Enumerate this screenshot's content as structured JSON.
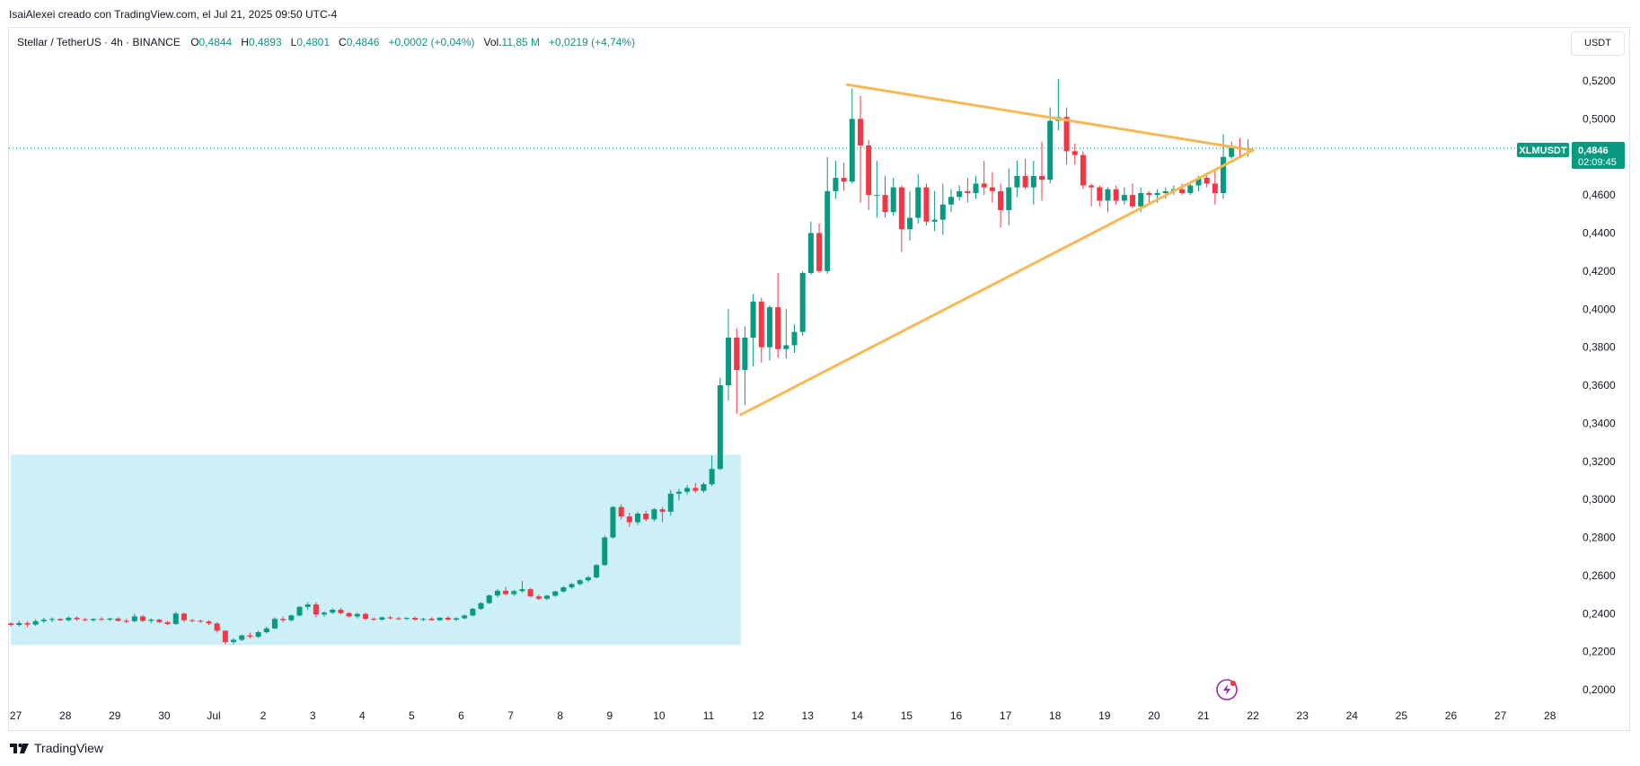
{
  "header": {
    "credit": "IsaiAlexei creado con TradingView.com, el Jul 21, 2025 09:50 UTC-4"
  },
  "legend": {
    "symbol": "Stellar / TetherUS · 4h · BINANCE",
    "o_label": "O",
    "o_value": "0,4844",
    "h_label": "H",
    "h_value": "0,4893",
    "l_label": "L",
    "l_value": "0,4801",
    "c_label": "C",
    "c_value": "0,4846",
    "change": "+0,0002 (+0,04%)",
    "vol_label": "Vol.",
    "vol_value": "11,85 M",
    "vol_change": "+0,0219 (+4,74%)"
  },
  "currency_button": "USDT",
  "price_tag": {
    "symbol": "XLMUSDT",
    "price": "0,4846",
    "countdown": "02:09:45"
  },
  "footer": {
    "brand": "TradingView"
  },
  "colors": {
    "up": "#089981",
    "down": "#f23645",
    "triangle": "#f7b955",
    "zone": "#cdf0f6",
    "grid_dotted": "#089981"
  },
  "chart_data": {
    "type": "candlestick",
    "symbol": "XLMUSDT",
    "timeframe": "4h",
    "exchange": "BINANCE",
    "y_ticks": [
      "0,5200",
      "0,5000",
      "0,4800",
      "0,4600",
      "0,4400",
      "0,4200",
      "0,4000",
      "0,3800",
      "0,3600",
      "0,3400",
      "0,3200",
      "0,3000",
      "0,2800",
      "0,2600",
      "0,2400",
      "0,2200",
      "0,2000"
    ],
    "y_tick_values": [
      0.52,
      0.5,
      0.48,
      0.46,
      0.44,
      0.42,
      0.4,
      0.38,
      0.36,
      0.34,
      0.32,
      0.3,
      0.28,
      0.26,
      0.24,
      0.22,
      0.2
    ],
    "ylim": [
      0.1935,
      0.5365
    ],
    "x_ticks": [
      "27",
      "28",
      "29",
      "30",
      "Jul",
      "2",
      "3",
      "4",
      "5",
      "6",
      "7",
      "8",
      "9",
      "10",
      "11",
      "12",
      "13",
      "14",
      "15",
      "16",
      "17",
      "18",
      "19",
      "20",
      "21",
      "22",
      "23",
      "24",
      "25",
      "26",
      "27",
      "28"
    ],
    "x_tick_days": [
      -4,
      -3,
      -2,
      -1,
      0,
      1,
      2,
      3,
      4,
      5,
      6,
      7,
      8,
      9,
      10,
      11,
      12,
      13,
      14,
      15,
      16,
      17,
      18,
      19,
      20,
      21,
      22,
      23,
      24,
      25,
      26,
      27
    ],
    "last_price": 0.4846,
    "consolidation_zone": {
      "x_from": -4.1,
      "x_to": 10.65,
      "y_from": 0.2235,
      "y_to": 0.3235
    },
    "triangle": {
      "upper": [
        [
          12.8,
          0.518
        ],
        [
          21.0,
          0.4835
        ]
      ],
      "lower": [
        [
          10.65,
          0.3445
        ],
        [
          21.0,
          0.4835
        ]
      ]
    },
    "candles": [
      [
        0.2348,
        0.2355,
        0.233,
        0.234
      ],
      [
        0.234,
        0.2362,
        0.2332,
        0.235
      ],
      [
        0.235,
        0.236,
        0.2328,
        0.2342
      ],
      [
        0.2342,
        0.237,
        0.2335,
        0.236
      ],
      [
        0.236,
        0.2378,
        0.235,
        0.2368
      ],
      [
        0.2368,
        0.238,
        0.2355,
        0.2372
      ],
      [
        0.2372,
        0.2376,
        0.236,
        0.2365
      ],
      [
        0.2365,
        0.2385,
        0.2358,
        0.2378
      ],
      [
        0.2378,
        0.2385,
        0.2362,
        0.237
      ],
      [
        0.237,
        0.2378,
        0.236,
        0.2365
      ],
      [
        0.2365,
        0.2375,
        0.2358,
        0.2372
      ],
      [
        0.2372,
        0.238,
        0.2362,
        0.2368
      ],
      [
        0.2368,
        0.2378,
        0.236,
        0.2374
      ],
      [
        0.2374,
        0.238,
        0.2358,
        0.2362
      ],
      [
        0.2362,
        0.2372,
        0.235,
        0.236
      ],
      [
        0.236,
        0.24,
        0.2355,
        0.2385
      ],
      [
        0.2385,
        0.2392,
        0.2355,
        0.2362
      ],
      [
        0.2362,
        0.2375,
        0.235,
        0.2368
      ],
      [
        0.2368,
        0.2372,
        0.235,
        0.2355
      ],
      [
        0.2355,
        0.2362,
        0.2338,
        0.2345
      ],
      [
        0.2345,
        0.241,
        0.234,
        0.24
      ],
      [
        0.24,
        0.2405,
        0.2355,
        0.2365
      ],
      [
        0.2365,
        0.2372,
        0.2355,
        0.2362
      ],
      [
        0.2362,
        0.2368,
        0.2352,
        0.2358
      ],
      [
        0.2358,
        0.2365,
        0.234,
        0.2348
      ],
      [
        0.2348,
        0.2355,
        0.23,
        0.231
      ],
      [
        0.231,
        0.2312,
        0.2238,
        0.225
      ],
      [
        0.225,
        0.227,
        0.2238,
        0.2262
      ],
      [
        0.2262,
        0.229,
        0.2255,
        0.2285
      ],
      [
        0.2285,
        0.23,
        0.227,
        0.2278
      ],
      [
        0.2278,
        0.231,
        0.2272,
        0.2302
      ],
      [
        0.2302,
        0.233,
        0.2295,
        0.2322
      ],
      [
        0.2322,
        0.238,
        0.2318,
        0.2372
      ],
      [
        0.2372,
        0.2385,
        0.2355,
        0.2365
      ],
      [
        0.2365,
        0.2395,
        0.2358,
        0.239
      ],
      [
        0.239,
        0.244,
        0.2385,
        0.2435
      ],
      [
        0.2435,
        0.246,
        0.242,
        0.2448
      ],
      [
        0.2448,
        0.246,
        0.238,
        0.2395
      ],
      [
        0.2395,
        0.2412,
        0.2385,
        0.2405
      ],
      [
        0.2405,
        0.2428,
        0.2398,
        0.242
      ],
      [
        0.242,
        0.243,
        0.2395,
        0.2402
      ],
      [
        0.2402,
        0.2408,
        0.238,
        0.2385
      ],
      [
        0.2385,
        0.2405,
        0.2375,
        0.2398
      ],
      [
        0.2398,
        0.2405,
        0.2365,
        0.2372
      ],
      [
        0.2372,
        0.238,
        0.2362,
        0.2368
      ],
      [
        0.2368,
        0.2385,
        0.2362,
        0.238
      ],
      [
        0.238,
        0.2388,
        0.2368,
        0.2375
      ],
      [
        0.2375,
        0.2382,
        0.2366,
        0.2372
      ],
      [
        0.2372,
        0.238,
        0.2365,
        0.2377
      ],
      [
        0.2377,
        0.2385,
        0.2362,
        0.2368
      ],
      [
        0.2368,
        0.2378,
        0.236,
        0.2372
      ],
      [
        0.2372,
        0.238,
        0.2362,
        0.2365
      ],
      [
        0.2365,
        0.2382,
        0.236,
        0.2378
      ],
      [
        0.2378,
        0.2385,
        0.2362,
        0.2368
      ],
      [
        0.2368,
        0.238,
        0.236,
        0.2375
      ],
      [
        0.2375,
        0.2395,
        0.237,
        0.239
      ],
      [
        0.239,
        0.243,
        0.2385,
        0.2425
      ],
      [
        0.2425,
        0.246,
        0.242,
        0.2455
      ],
      [
        0.2455,
        0.25,
        0.245,
        0.2495
      ],
      [
        0.2495,
        0.253,
        0.2485,
        0.252
      ],
      [
        0.252,
        0.254,
        0.2495,
        0.2502
      ],
      [
        0.2502,
        0.2525,
        0.2492,
        0.2518
      ],
      [
        0.2518,
        0.257,
        0.251,
        0.2528
      ],
      [
        0.2528,
        0.2535,
        0.2485,
        0.249
      ],
      [
        0.249,
        0.25,
        0.247,
        0.2478
      ],
      [
        0.2478,
        0.2498,
        0.247,
        0.2494
      ],
      [
        0.2494,
        0.252,
        0.2488,
        0.2516
      ],
      [
        0.2516,
        0.2545,
        0.251,
        0.2538
      ],
      [
        0.2538,
        0.256,
        0.253,
        0.2555
      ],
      [
        0.2555,
        0.258,
        0.2548,
        0.2575
      ],
      [
        0.2575,
        0.26,
        0.2565,
        0.259
      ],
      [
        0.259,
        0.266,
        0.2585,
        0.2655
      ],
      [
        0.2655,
        0.281,
        0.265,
        0.28
      ],
      [
        0.28,
        0.2965,
        0.2795,
        0.296
      ],
      [
        0.296,
        0.2975,
        0.2895,
        0.291
      ],
      [
        0.291,
        0.293,
        0.2855,
        0.288
      ],
      [
        0.288,
        0.2935,
        0.2865,
        0.2925
      ],
      [
        0.2925,
        0.294,
        0.2885,
        0.2895
      ],
      [
        0.2895,
        0.2955,
        0.2885,
        0.2948
      ],
      [
        0.2948,
        0.296,
        0.288,
        0.2935
      ],
      [
        0.2935,
        0.305,
        0.2915,
        0.303
      ],
      [
        0.303,
        0.3055,
        0.2995,
        0.304
      ],
      [
        0.304,
        0.3075,
        0.3025,
        0.306
      ],
      [
        0.306,
        0.3085,
        0.3035,
        0.3045
      ],
      [
        0.3045,
        0.309,
        0.3035,
        0.308
      ],
      [
        0.308,
        0.323,
        0.307,
        0.316
      ],
      [
        0.316,
        0.364,
        0.3155,
        0.36
      ],
      [
        0.36,
        0.4,
        0.352,
        0.385
      ],
      [
        0.385,
        0.39,
        0.345,
        0.368
      ],
      [
        0.368,
        0.391,
        0.3495,
        0.385
      ],
      [
        0.385,
        0.408,
        0.37,
        0.404
      ],
      [
        0.404,
        0.406,
        0.372,
        0.38
      ],
      [
        0.38,
        0.402,
        0.373,
        0.401
      ],
      [
        0.401,
        0.419,
        0.3745,
        0.379
      ],
      [
        0.379,
        0.4,
        0.374,
        0.381
      ],
      [
        0.381,
        0.392,
        0.377,
        0.388
      ],
      [
        0.388,
        0.42,
        0.386,
        0.419
      ],
      [
        0.419,
        0.446,
        0.418,
        0.44
      ],
      [
        0.44,
        0.445,
        0.419,
        0.42
      ],
      [
        0.42,
        0.48,
        0.4185,
        0.462
      ],
      [
        0.462,
        0.478,
        0.458,
        0.469
      ],
      [
        0.469,
        0.477,
        0.462,
        0.467
      ],
      [
        0.467,
        0.516,
        0.466,
        0.5
      ],
      [
        0.5,
        0.512,
        0.456,
        0.486
      ],
      [
        0.486,
        0.489,
        0.452,
        0.46
      ],
      [
        0.46,
        0.478,
        0.448,
        0.46
      ],
      [
        0.46,
        0.47,
        0.448,
        0.451
      ],
      [
        0.451,
        0.469,
        0.449,
        0.464
      ],
      [
        0.464,
        0.465,
        0.43,
        0.442
      ],
      [
        0.442,
        0.462,
        0.436,
        0.448
      ],
      [
        0.448,
        0.471,
        0.445,
        0.464
      ],
      [
        0.464,
        0.466,
        0.444,
        0.446
      ],
      [
        0.446,
        0.462,
        0.441,
        0.447
      ],
      [
        0.447,
        0.466,
        0.439,
        0.455
      ],
      [
        0.455,
        0.463,
        0.451,
        0.459
      ],
      [
        0.459,
        0.465,
        0.457,
        0.462
      ],
      [
        0.462,
        0.469,
        0.456,
        0.461
      ],
      [
        0.461,
        0.47,
        0.458,
        0.466
      ],
      [
        0.466,
        0.478,
        0.46,
        0.464
      ],
      [
        0.464,
        0.472,
        0.456,
        0.462
      ],
      [
        0.462,
        0.466,
        0.443,
        0.452
      ],
      [
        0.452,
        0.474,
        0.444,
        0.464
      ],
      [
        0.464,
        0.478,
        0.459,
        0.47
      ],
      [
        0.47,
        0.479,
        0.463,
        0.464
      ],
      [
        0.464,
        0.478,
        0.455,
        0.47
      ],
      [
        0.47,
        0.488,
        0.457,
        0.468
      ],
      [
        0.468,
        0.506,
        0.466,
        0.499
      ],
      [
        0.499,
        0.521,
        0.494,
        0.501
      ],
      [
        0.501,
        0.506,
        0.476,
        0.483
      ],
      [
        0.483,
        0.487,
        0.476,
        0.481
      ],
      [
        0.481,
        0.483,
        0.463,
        0.465
      ],
      [
        0.465,
        0.466,
        0.454,
        0.464
      ],
      [
        0.464,
        0.465,
        0.454,
        0.457
      ],
      [
        0.457,
        0.464,
        0.451,
        0.463
      ],
      [
        0.463,
        0.465,
        0.455,
        0.457
      ],
      [
        0.457,
        0.464,
        0.455,
        0.46
      ],
      [
        0.46,
        0.466,
        0.453,
        0.454
      ],
      [
        0.454,
        0.464,
        0.451,
        0.461
      ],
      [
        0.461,
        0.462,
        0.456,
        0.46
      ],
      [
        0.46,
        0.463,
        0.456,
        0.461
      ],
      [
        0.461,
        0.464,
        0.458,
        0.462
      ],
      [
        0.462,
        0.465,
        0.46,
        0.463
      ],
      [
        0.463,
        0.466,
        0.46,
        0.461
      ],
      [
        0.461,
        0.466,
        0.46,
        0.465
      ],
      [
        0.465,
        0.47,
        0.462,
        0.469
      ],
      [
        0.469,
        0.471,
        0.464,
        0.466
      ],
      [
        0.466,
        0.473,
        0.455,
        0.461
      ],
      [
        0.461,
        0.492,
        0.458,
        0.48
      ],
      [
        0.48,
        0.488,
        0.479,
        0.485
      ],
      [
        0.485,
        0.49,
        0.48,
        0.484
      ],
      [
        0.4844,
        0.4893,
        0.4801,
        0.4846
      ]
    ]
  }
}
